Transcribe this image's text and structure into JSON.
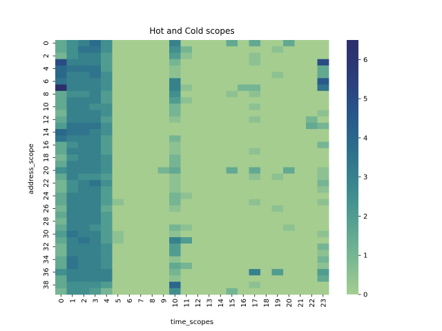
{
  "chart_data": {
    "type": "heatmap",
    "title": "Hot and Cold scopes",
    "xlabel": "time_scopes",
    "ylabel": "address_scope",
    "x_tick_labels": [
      "0",
      "1",
      "2",
      "3",
      "4",
      "5",
      "6",
      "7",
      "8",
      "9",
      "10",
      "11",
      "12",
      "13",
      "14",
      "15",
      "16",
      "17",
      "18",
      "19",
      "20",
      "21",
      "22",
      "23"
    ],
    "y_tick_labels": [
      "0",
      "2",
      "4",
      "6",
      "8",
      "10",
      "12",
      "14",
      "16",
      "18",
      "20",
      "22",
      "24",
      "26",
      "28",
      "30",
      "32",
      "34",
      "36",
      "38"
    ],
    "rows": 40,
    "cols": 24,
    "value_range": [
      0,
      6.5
    ],
    "colorbar_ticks": [
      "0",
      "1",
      "2",
      "3",
      "4",
      "5",
      "6"
    ],
    "colormap": "crest",
    "colorbar_colors": [
      "#a5cd90",
      "#79b793",
      "#55a091",
      "#3a878e",
      "#2c6e8b",
      "#28558a",
      "#2c3c7a",
      "#2c2e6b"
    ],
    "values": [
      [
        1.5,
        2.5,
        3.0,
        3.8,
        2.5,
        0,
        0,
        0,
        0,
        0,
        3.0,
        0,
        0,
        0,
        0,
        1.5,
        0,
        1.5,
        0,
        0,
        1.5,
        0,
        0,
        0
      ],
      [
        1.5,
        2.5,
        3.5,
        3.5,
        2.5,
        0,
        0,
        0,
        0,
        0,
        2.5,
        1.0,
        0,
        0,
        0,
        0,
        0,
        0,
        0,
        0.5,
        0,
        0,
        0,
        0
      ],
      [
        1.0,
        2.5,
        3.0,
        3.0,
        2.0,
        0,
        0,
        0,
        0,
        0,
        2.0,
        0.5,
        0,
        0,
        0,
        0,
        0,
        0.5,
        0,
        0,
        0,
        0,
        0,
        0
      ],
      [
        5.0,
        3.0,
        3.0,
        3.0,
        2.0,
        0,
        0,
        0,
        0,
        0,
        1.0,
        0,
        0,
        0,
        0,
        0,
        0,
        0.5,
        0,
        0,
        0,
        0,
        0,
        5.0
      ],
      [
        4.0,
        3.5,
        3.5,
        3.5,
        2.0,
        0,
        0,
        0,
        0,
        0,
        0.5,
        0,
        0,
        0,
        0,
        0,
        0,
        0,
        0,
        0,
        0,
        0,
        0,
        1.5
      ],
      [
        4.0,
        3.0,
        3.0,
        3.5,
        2.5,
        0,
        0,
        0,
        0,
        0,
        0.5,
        0,
        0,
        0,
        0,
        0,
        0,
        0,
        0,
        0.5,
        0,
        0,
        0,
        1.5
      ],
      [
        3.5,
        3.0,
        3.0,
        3.0,
        2.5,
        0,
        0,
        0,
        0,
        0,
        3.0,
        0,
        0,
        0,
        0,
        0,
        0,
        0,
        0,
        0,
        0,
        0,
        0,
        4.5
      ],
      [
        6.5,
        3.0,
        3.0,
        3.0,
        2.5,
        0,
        0,
        0,
        0,
        0,
        3.0,
        0.5,
        0,
        0,
        0,
        0,
        1.0,
        1.0,
        0,
        0,
        0,
        0,
        0,
        3.5
      ],
      [
        1.5,
        2.5,
        2.5,
        3.0,
        2.0,
        0,
        0,
        0,
        0,
        0,
        2.5,
        0,
        0,
        0,
        0,
        0.5,
        0,
        0.5,
        0,
        0,
        0,
        0,
        0,
        0
      ],
      [
        1.5,
        3.0,
        3.0,
        3.0,
        2.0,
        0,
        0,
        0,
        0,
        0,
        2.0,
        0.5,
        0,
        0,
        0,
        0,
        0,
        0,
        0,
        0,
        0,
        0,
        0,
        0
      ],
      [
        1.5,
        3.0,
        3.0,
        2.5,
        2.5,
        0,
        0,
        0,
        0,
        0,
        1.0,
        0,
        0,
        0,
        0,
        0,
        0,
        0.5,
        0,
        0,
        0,
        0,
        0,
        0
      ],
      [
        1.0,
        3.0,
        3.0,
        3.0,
        2.5,
        0,
        0,
        0,
        0,
        0,
        1.0,
        0,
        0,
        0,
        0,
        0,
        0,
        0,
        0,
        0,
        0,
        0,
        0,
        0.5
      ],
      [
        1.5,
        3.0,
        3.0,
        3.0,
        2.0,
        0,
        0,
        0,
        0,
        0,
        0.5,
        0,
        0,
        0,
        0,
        0,
        0,
        0.5,
        0,
        0,
        0,
        0,
        1.0,
        0
      ],
      [
        2.0,
        3.5,
        3.5,
        3.5,
        2.5,
        0,
        0,
        0,
        0,
        0,
        0,
        0,
        0,
        0,
        0,
        0,
        0,
        0,
        0,
        0,
        0,
        0,
        1.5,
        1.0
      ],
      [
        4.0,
        3.5,
        3.5,
        3.0,
        2.5,
        0,
        0,
        0,
        0,
        0,
        0,
        0,
        0,
        0,
        0,
        0,
        0,
        0,
        0,
        0,
        0,
        0,
        0,
        0
      ],
      [
        3.5,
        3.0,
        3.0,
        3.0,
        2.0,
        0,
        0,
        0,
        0,
        0,
        1.0,
        0,
        0,
        0,
        0,
        0,
        0,
        0,
        0,
        0,
        0,
        0,
        0,
        0
      ],
      [
        1.5,
        2.5,
        3.0,
        3.0,
        2.0,
        0,
        0,
        0,
        0,
        0,
        0.5,
        0,
        0,
        0,
        0,
        0,
        0,
        0,
        0,
        0,
        0,
        0,
        0,
        1.0
      ],
      [
        1.5,
        3.0,
        3.0,
        3.0,
        2.0,
        0,
        0,
        0,
        0,
        0,
        0.5,
        0,
        0,
        0,
        0,
        0,
        0,
        0.5,
        0,
        0,
        0,
        0,
        0,
        0
      ],
      [
        1.0,
        2.5,
        3.0,
        3.0,
        2.5,
        0,
        0,
        0,
        0,
        0,
        1.0,
        0,
        0,
        0,
        0,
        0,
        0,
        0,
        0,
        0,
        0,
        0,
        0,
        0
      ],
      [
        1.5,
        3.0,
        3.0,
        3.0,
        2.5,
        0,
        0,
        0,
        0,
        0,
        1.0,
        0,
        0,
        0,
        0,
        0,
        0,
        0,
        0,
        0,
        0,
        0,
        0,
        0
      ],
      [
        2.5,
        3.0,
        3.0,
        3.0,
        2.5,
        0,
        0,
        0,
        0,
        1.0,
        1.5,
        0,
        0,
        0,
        0,
        1.5,
        0,
        1.5,
        0,
        0,
        1.5,
        0,
        0,
        0.5
      ],
      [
        1.5,
        3.0,
        2.5,
        2.5,
        2.0,
        0,
        0,
        0,
        0,
        0,
        0.5,
        0,
        0,
        0,
        0,
        0,
        0,
        0.5,
        0,
        0.5,
        0,
        0,
        0,
        0.5
      ],
      [
        1.0,
        2.5,
        3.0,
        3.5,
        2.5,
        0,
        0,
        0,
        0,
        0,
        0.5,
        0,
        0,
        0,
        0,
        0,
        0,
        0,
        0,
        0,
        0,
        0,
        0,
        1.0
      ],
      [
        1.0,
        2.5,
        3.0,
        3.0,
        2.0,
        0,
        0,
        0,
        0,
        0,
        0.5,
        0,
        0,
        0,
        0,
        0,
        0,
        0,
        0,
        0,
        0,
        0,
        0,
        0.5
      ],
      [
        1.5,
        3.0,
        3.0,
        3.0,
        2.0,
        0,
        0,
        0,
        0,
        0,
        1.0,
        0.5,
        0,
        0,
        0,
        0,
        0,
        0,
        0,
        0,
        0,
        0,
        0,
        0
      ],
      [
        1.5,
        3.0,
        3.0,
        3.0,
        2.0,
        0.5,
        0,
        0,
        0,
        0,
        1.0,
        0,
        0,
        0,
        0,
        0,
        0,
        0.5,
        0,
        0,
        0,
        0,
        0,
        0.5
      ],
      [
        1.0,
        3.0,
        3.0,
        3.0,
        1.5,
        0,
        0,
        0,
        0,
        0,
        0.5,
        0,
        0,
        0,
        0,
        0,
        0,
        0,
        0,
        0.5,
        0,
        0,
        0,
        0
      ],
      [
        1.5,
        3.0,
        3.0,
        3.0,
        2.0,
        0,
        0,
        0,
        0,
        0,
        0,
        0,
        0,
        0,
        0,
        0,
        0,
        0,
        0,
        0,
        0,
        0,
        0,
        0
      ],
      [
        1.0,
        3.0,
        3.0,
        3.0,
        2.0,
        0,
        0,
        0,
        0,
        0,
        0,
        0,
        0,
        0,
        0,
        0,
        0,
        0,
        0,
        0,
        0,
        0,
        0,
        0
      ],
      [
        1.5,
        3.0,
        3.0,
        2.5,
        2.0,
        0,
        0,
        0,
        0,
        0,
        1.0,
        0.5,
        0,
        0,
        0,
        0,
        0,
        0,
        0,
        0,
        0.5,
        0,
        0,
        0
      ],
      [
        2.0,
        3.5,
        3.0,
        3.0,
        2.0,
        0.5,
        0,
        0,
        0,
        0,
        0.5,
        0,
        0,
        0,
        0,
        0,
        0,
        0,
        0,
        0,
        0,
        0,
        0,
        0.5
      ],
      [
        1.5,
        3.0,
        3.5,
        3.0,
        2.0,
        0.5,
        0,
        0,
        0,
        0,
        3.0,
        2.0,
        0,
        0,
        0,
        0,
        0,
        0,
        0,
        0,
        0,
        0,
        0,
        0
      ],
      [
        1.0,
        3.0,
        3.0,
        3.0,
        2.5,
        0,
        0,
        0,
        0,
        0,
        2.0,
        0,
        0,
        0,
        0,
        0,
        0,
        0,
        0,
        0,
        0,
        0,
        0,
        1.0
      ],
      [
        1.0,
        3.0,
        3.0,
        3.0,
        2.5,
        0,
        0,
        0,
        0,
        0,
        2.0,
        0,
        0,
        0,
        0,
        0,
        0,
        0,
        0,
        0,
        0,
        0,
        0,
        0.5
      ],
      [
        1.5,
        3.5,
        3.0,
        3.0,
        2.5,
        0,
        0,
        0,
        0,
        0,
        0.5,
        0,
        0,
        0,
        0,
        0,
        0,
        0,
        0,
        0,
        0,
        0,
        0,
        1.0
      ],
      [
        1.5,
        3.5,
        3.0,
        3.0,
        2.5,
        0,
        0,
        0,
        0,
        0,
        1.5,
        1.0,
        0,
        0,
        0,
        0,
        0,
        0,
        0,
        0,
        0,
        0,
        0,
        0.5
      ],
      [
        2.5,
        3.0,
        3.0,
        3.0,
        3.0,
        0,
        0,
        0,
        0,
        0,
        1.0,
        0,
        0,
        0,
        0,
        0,
        0,
        3.0,
        0,
        2.0,
        0,
        0,
        0,
        2.0
      ],
      [
        1.5,
        3.0,
        3.0,
        3.0,
        3.0,
        0,
        0,
        0,
        0,
        0,
        0.5,
        0,
        0,
        0,
        0,
        0,
        0,
        0,
        0,
        0,
        0,
        0,
        0,
        1.5
      ],
      [
        1.5,
        2.5,
        2.5,
        2.5,
        2.0,
        0,
        0,
        0,
        0,
        0,
        4.0,
        0,
        0,
        0,
        0,
        0,
        0,
        0.5,
        0,
        0,
        0,
        0,
        0,
        0
      ],
      [
        1.0,
        2.5,
        2.5,
        2.0,
        1.0,
        0,
        0,
        0,
        0,
        0,
        2.5,
        0,
        0,
        0,
        0,
        1.0,
        0,
        0,
        0,
        0,
        0,
        0,
        0,
        0
      ]
    ]
  }
}
